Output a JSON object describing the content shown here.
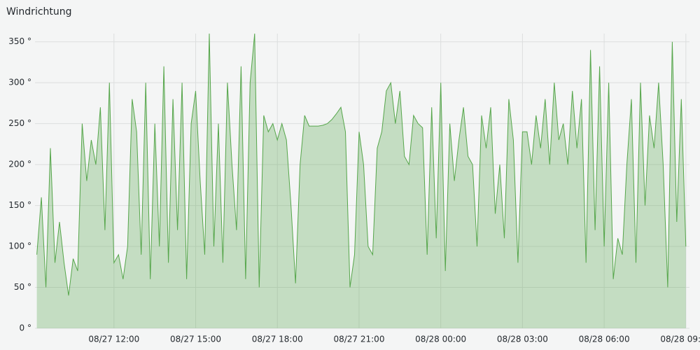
{
  "chart_data": {
    "type": "area",
    "title": "Windrichtung",
    "ylim": [
      0,
      360
    ],
    "yticks": [
      {
        "value": 0,
        "label": "0 °"
      },
      {
        "value": 50,
        "label": "50 °"
      },
      {
        "value": 100,
        "label": "100 °"
      },
      {
        "value": 150,
        "label": "150 °"
      },
      {
        "value": 200,
        "label": "200 °"
      },
      {
        "value": 250,
        "label": "250 °"
      },
      {
        "value": 300,
        "label": "300 °"
      },
      {
        "value": 350,
        "label": "350 °"
      }
    ],
    "xlim": [
      "08/27 09:06",
      "08/28 09:08"
    ],
    "xticks": [
      "08/27 12:00",
      "08/27 15:00",
      "08/27 18:00",
      "08/27 21:00",
      "08/28 00:00",
      "08/28 03:00",
      "08/28 06:00",
      "08/28 09:00"
    ],
    "grid": true,
    "x": [
      "08/27 09:10",
      "08/27 09:20",
      "08/27 09:30",
      "08/27 09:40",
      "08/27 09:50",
      "08/27 10:00",
      "08/27 10:10",
      "08/27 10:20",
      "08/27 10:30",
      "08/27 10:40",
      "08/27 10:50",
      "08/27 11:00",
      "08/27 11:10",
      "08/27 11:20",
      "08/27 11:30",
      "08/27 11:40",
      "08/27 11:50",
      "08/27 12:00",
      "08/27 12:10",
      "08/27 12:20",
      "08/27 12:30",
      "08/27 12:40",
      "08/27 12:50",
      "08/27 13:00",
      "08/27 13:10",
      "08/27 13:20",
      "08/27 13:30",
      "08/27 13:40",
      "08/27 13:50",
      "08/27 14:00",
      "08/27 14:10",
      "08/27 14:20",
      "08/27 14:30",
      "08/27 14:40",
      "08/27 14:50",
      "08/27 15:00",
      "08/27 15:10",
      "08/27 15:20",
      "08/27 15:30",
      "08/27 15:40",
      "08/27 15:50",
      "08/27 16:00",
      "08/27 16:10",
      "08/27 16:20",
      "08/27 16:30",
      "08/27 16:40",
      "08/27 16:50",
      "08/27 17:00",
      "08/27 17:10",
      "08/27 17:20",
      "08/27 17:30",
      "08/27 17:40",
      "08/27 17:50",
      "08/27 18:00",
      "08/27 18:10",
      "08/27 18:20",
      "08/27 18:30",
      "08/27 18:40",
      "08/27 18:50",
      "08/27 19:00",
      "08/27 19:10",
      "08/27 19:20",
      "08/27 19:30",
      "08/27 19:40",
      "08/27 19:50",
      "08/27 20:00",
      "08/27 20:10",
      "08/27 20:20",
      "08/27 20:30",
      "08/27 20:40",
      "08/27 20:50",
      "08/27 21:00",
      "08/27 21:10",
      "08/27 21:20",
      "08/27 21:30",
      "08/27 21:40",
      "08/27 21:50",
      "08/27 22:00",
      "08/27 22:10",
      "08/27 22:20",
      "08/27 22:30",
      "08/27 22:40",
      "08/27 22:50",
      "08/27 23:00",
      "08/27 23:10",
      "08/27 23:20",
      "08/27 23:30",
      "08/27 23:40",
      "08/27 23:50",
      "08/28 00:00",
      "08/28 00:10",
      "08/28 00:20",
      "08/28 00:30",
      "08/28 00:40",
      "08/28 00:50",
      "08/28 01:00",
      "08/28 01:10",
      "08/28 01:20",
      "08/28 01:30",
      "08/28 01:40",
      "08/28 01:50",
      "08/28 02:00",
      "08/28 02:10",
      "08/28 02:20",
      "08/28 02:30",
      "08/28 02:40",
      "08/28 02:50",
      "08/28 03:00",
      "08/28 03:10",
      "08/28 03:20",
      "08/28 03:30",
      "08/28 03:40",
      "08/28 03:50",
      "08/28 04:00",
      "08/28 04:10",
      "08/28 04:20",
      "08/28 04:30",
      "08/28 04:40",
      "08/28 04:50",
      "08/28 05:00",
      "08/28 05:10",
      "08/28 05:20",
      "08/28 05:30",
      "08/28 05:40",
      "08/28 05:50",
      "08/28 06:00",
      "08/28 06:10",
      "08/28 06:20",
      "08/28 06:30",
      "08/28 06:40",
      "08/28 06:50",
      "08/28 07:00",
      "08/28 07:10",
      "08/28 07:20",
      "08/28 07:30",
      "08/28 07:40",
      "08/28 07:50",
      "08/28 08:00",
      "08/28 08:10",
      "08/28 08:20",
      "08/28 08:30",
      "08/28 08:40",
      "08/28 08:50",
      "08/28 09:00"
    ],
    "series": [
      {
        "color": "#56a64b",
        "values": [
          90,
          160,
          50,
          220,
          80,
          130,
          80,
          40,
          85,
          70,
          250,
          180,
          230,
          200,
          270,
          120,
          300,
          80,
          90,
          60,
          100,
          280,
          240,
          90,
          300,
          60,
          250,
          100,
          320,
          80,
          280,
          120,
          300,
          60,
          250,
          290,
          180,
          90,
          360,
          100,
          250,
          80,
          300,
          200,
          120,
          320,
          60,
          300,
          360,
          50,
          260,
          240,
          250,
          230,
          250,
          230,
          150,
          55,
          200,
          260,
          247,
          247,
          247,
          248,
          250,
          255,
          262,
          270,
          240,
          50,
          90,
          240,
          200,
          100,
          90,
          220,
          240,
          290,
          300,
          250,
          290,
          210,
          200,
          260,
          250,
          245,
          90,
          270,
          110,
          300,
          70,
          250,
          180,
          230,
          270,
          210,
          200,
          100,
          260,
          220,
          270,
          140,
          200,
          110,
          280,
          230,
          80,
          240,
          240,
          200,
          260,
          220,
          280,
          200,
          300,
          230,
          250,
          200,
          290,
          220,
          280,
          80,
          340,
          120,
          320,
          100,
          300,
          60,
          110,
          90,
          200,
          280,
          80,
          300,
          150,
          260,
          220,
          300,
          200,
          50,
          350,
          130,
          280,
          100
        ]
      }
    ]
  }
}
